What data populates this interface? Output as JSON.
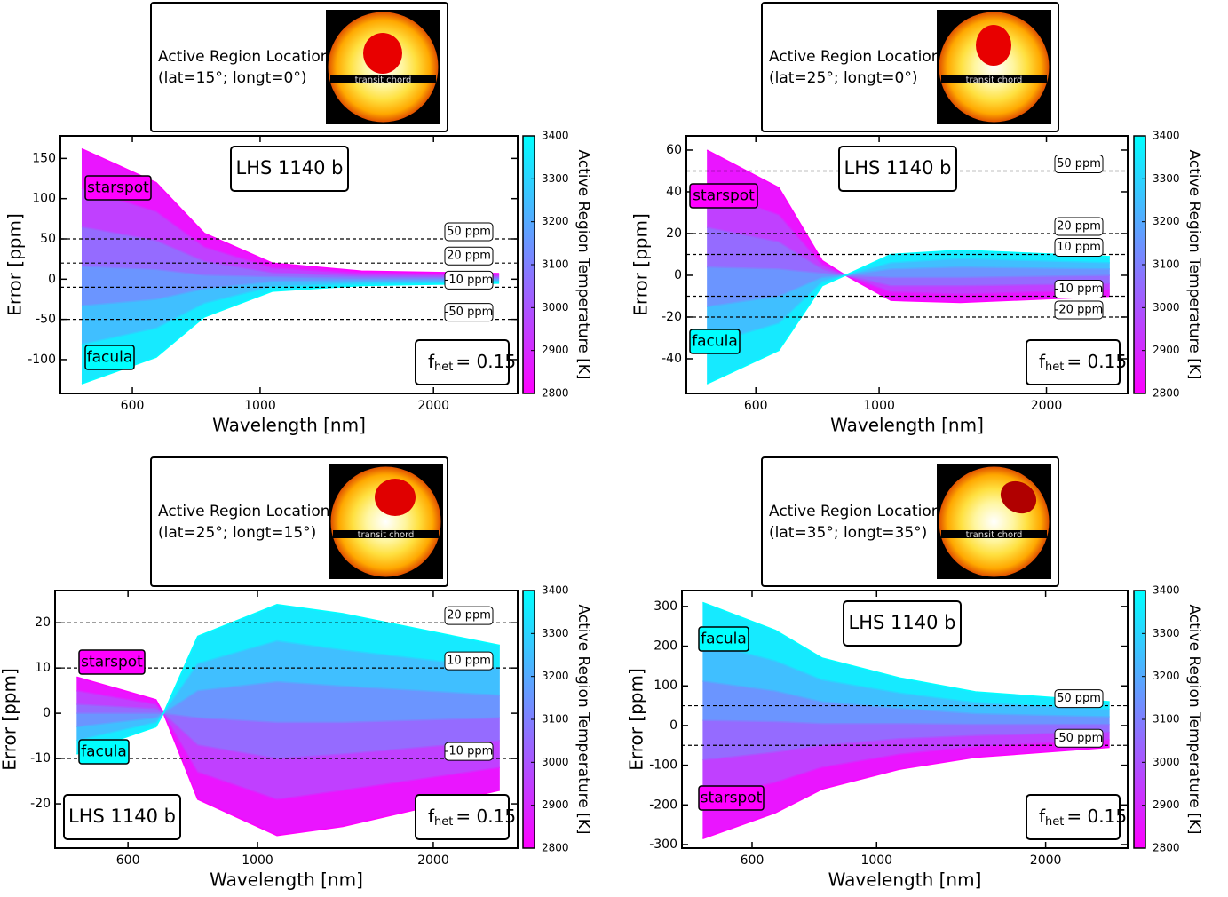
{
  "chart_data": [
    {
      "type": "line",
      "inset": {
        "heading": "Active Region Location:",
        "location": "(lat=15°; longt=0°)",
        "chord_label": "transit chord"
      },
      "title": "LHS 1140 b",
      "annotations": [
        {
          "text": "starspot",
          "color": "#ff00ff"
        },
        {
          "text": "facula",
          "color": "#00ffff"
        }
      ],
      "fhet": {
        "symbol": "f",
        "subscript": "het",
        "text": "= 0.15"
      },
      "xlabel": "Wavelength [nm]",
      "ylabel": "Error [ppm]",
      "xscale": "log",
      "xlim": [
        450,
        2800
      ],
      "xticks": [
        600,
        1000,
        2000
      ],
      "ylim": [
        -142,
        178
      ],
      "yticks": [
        -100,
        -50,
        0,
        50,
        100,
        150
      ],
      "hlines": [
        {
          "value": 50,
          "label": "50 ppm"
        },
        {
          "value": 20,
          "label": "20 ppm"
        },
        {
          "value": -10,
          "label": "-10 ppm"
        },
        {
          "value": -50,
          "label": "-50 ppm"
        }
      ],
      "x": [
        490,
        660,
        800,
        1050,
        1500,
        2600
      ],
      "series": [
        {
          "color": "#ff00ff",
          "values": [
            162,
            120,
            57,
            20,
            10,
            7
          ]
        },
        {
          "color": "#d52aff",
          "values": [
            113,
            84,
            40,
            14,
            7,
            5
          ]
        },
        {
          "color": "#aa55ff",
          "values": [
            65,
            48,
            22,
            8,
            4,
            3
          ]
        },
        {
          "color": "#8080ff",
          "values": [
            16,
            12,
            5,
            3,
            1,
            1
          ]
        },
        {
          "color": "#55aaff",
          "values": [
            -33,
            -25,
            -12,
            -3,
            -2,
            -1
          ]
        },
        {
          "color": "#2bd4ff",
          "values": [
            -81,
            -61,
            -30,
            -9,
            -5,
            -3
          ]
        },
        {
          "color": "#00ffff",
          "values": [
            -130,
            -97,
            -47,
            -15,
            -8,
            -5
          ]
        }
      ],
      "colorbar": {
        "label": "Active Region Temperature [K]",
        "lim": [
          2800,
          3400
        ],
        "ticks": [
          2800,
          2900,
          3000,
          3100,
          3200,
          3300,
          3400
        ],
        "colors": [
          "#ff00ff",
          "#00ffff"
        ]
      }
    },
    {
      "type": "line",
      "inset": {
        "heading": "Active Region Location:",
        "location": "(lat=25°; longt=0°)",
        "chord_label": "transit chord"
      },
      "title": "LHS 1140 b",
      "annotations": [
        {
          "text": "starspot",
          "color": "#ff00ff"
        },
        {
          "text": "facula",
          "color": "#00ffff"
        }
      ],
      "fhet": {
        "symbol": "f",
        "subscript": "het",
        "text": "= 0.15"
      },
      "xlabel": "Wavelength [nm]",
      "ylabel": "Error [ppm]",
      "xscale": "log",
      "xlim": [
        450,
        2800
      ],
      "xticks": [
        600,
        1000,
        2000
      ],
      "ylim": [
        -56.6,
        66.8
      ],
      "yticks": [
        -40,
        -20,
        0,
        20,
        40,
        60
      ],
      "hlines": [
        {
          "value": 50,
          "label": "50 ppm"
        },
        {
          "value": 20,
          "label": "20 ppm"
        },
        {
          "value": 10,
          "label": "10 ppm"
        },
        {
          "value": -10,
          "label": "-10 ppm"
        },
        {
          "value": -20,
          "label": "-20 ppm"
        }
      ],
      "x": [
        490,
        660,
        790,
        870,
        1050,
        1400,
        2600
      ],
      "series": [
        {
          "color": "#ff00ff",
          "values": [
            60,
            42,
            7,
            0,
            -12,
            -13,
            -10
          ]
        },
        {
          "color": "#d52aff",
          "values": [
            41,
            29,
            5,
            0,
            -8,
            -9,
            -7
          ]
        },
        {
          "color": "#aa55ff",
          "values": [
            23,
            16,
            3,
            0,
            -5,
            -5,
            -4
          ]
        },
        {
          "color": "#8080ff",
          "values": [
            4,
            3,
            1,
            0,
            -1,
            -1,
            0
          ]
        },
        {
          "color": "#55aaff",
          "values": [
            -15,
            -10,
            -1,
            0,
            3,
            4,
            3
          ]
        },
        {
          "color": "#2bd4ff",
          "values": [
            -33,
            -23,
            -3,
            0,
            6,
            8,
            6
          ]
        },
        {
          "color": "#00ffff",
          "values": [
            -52,
            -36,
            -5,
            0,
            10,
            12,
            9
          ]
        }
      ],
      "colorbar": {
        "label": "Active Region Temperature [K]",
        "lim": [
          2800,
          3400
        ],
        "ticks": [
          2800,
          2900,
          3000,
          3100,
          3200,
          3300,
          3400
        ],
        "colors": [
          "#ff00ff",
          "#00ffff"
        ]
      }
    },
    {
      "type": "line",
      "inset": {
        "heading": "Active Region Location:",
        "location": "(lat=25°; longt=15°)",
        "chord_label": "transit chord"
      },
      "title": "LHS 1140 b",
      "annotations": [
        {
          "text": "starspot",
          "color": "#ff00ff"
        },
        {
          "text": "facula",
          "color": "#00ffff"
        }
      ],
      "fhet": {
        "symbol": "f",
        "subscript": "het",
        "text": "= 0.15"
      },
      "xlabel": "Wavelength [nm]",
      "ylabel": "Error [ppm]",
      "xscale": "log",
      "xlim": [
        450,
        2790
      ],
      "xticks": [
        600,
        1000,
        2000
      ],
      "ylim": [
        -29.8,
        27.1
      ],
      "yticks": [
        -20,
        -10,
        0,
        10,
        20
      ],
      "hlines": [
        {
          "value": 20,
          "label": "20 ppm"
        },
        {
          "value": 10,
          "label": "10 ppm"
        },
        {
          "value": -10,
          "label": "-10 ppm"
        }
      ],
      "x": [
        490,
        670,
        690,
        790,
        1080,
        1400,
        2600
      ],
      "series": [
        {
          "color": "#ff00ff",
          "values": [
            8,
            3,
            0,
            -19,
            -27,
            -25,
            -17
          ]
        },
        {
          "color": "#d52aff",
          "values": [
            5,
            2,
            0,
            -13,
            -19,
            -17,
            -12
          ]
        },
        {
          "color": "#aa55ff",
          "values": [
            2,
            1,
            0,
            -7,
            -10,
            -9,
            -6
          ]
        },
        {
          "color": "#8080ff",
          "values": [
            0,
            0,
            0,
            -1,
            -2,
            -2,
            -1
          ]
        },
        {
          "color": "#55aaff",
          "values": [
            -3,
            -1,
            0,
            5,
            7,
            6,
            4
          ]
        },
        {
          "color": "#2bd4ff",
          "values": [
            -6,
            -2,
            0,
            11,
            16,
            14,
            10
          ]
        },
        {
          "color": "#00ffff",
          "values": [
            -9,
            -3,
            0,
            17,
            24,
            22,
            15
          ]
        }
      ],
      "colorbar": {
        "label": "Active Region Temperature [K]",
        "lim": [
          2800,
          3400
        ],
        "ticks": [
          2800,
          2900,
          3000,
          3100,
          3200,
          3300,
          3400
        ],
        "colors": [
          "#ff00ff",
          "#00ffff"
        ]
      }
    },
    {
      "type": "line",
      "inset": {
        "heading": "Active Region Location:",
        "location": "(lat=35°; longt=35°)",
        "chord_label": "transit chord"
      },
      "title": "LHS 1140 b",
      "annotations": [
        {
          "text": "starspot",
          "color": "#ff00ff"
        },
        {
          "text": "facula",
          "color": "#00ffff"
        }
      ],
      "fhet": {
        "symbol": "f",
        "subscript": "het",
        "text": "= 0.15"
      },
      "xlabel": "Wavelength [nm]",
      "ylabel": "Error [ppm]",
      "xscale": "log",
      "xlim": [
        450,
        2800
      ],
      "xticks": [
        600,
        1000,
        2000
      ],
      "ylim": [
        -309,
        340
      ],
      "yticks": [
        -300,
        -200,
        -100,
        0,
        100,
        200,
        300
      ],
      "hlines": [
        {
          "value": 50,
          "label": "50 ppm"
        },
        {
          "value": -50,
          "label": "-50 ppm"
        }
      ],
      "x": [
        490,
        660,
        800,
        1100,
        1500,
        2600
      ],
      "series": [
        {
          "color": "#ff00ff",
          "values": [
            -285,
            -220,
            -160,
            -110,
            -80,
            -55
          ]
        },
        {
          "color": "#d52aff",
          "values": [
            -186,
            -143,
            -105,
            -72,
            -53,
            -36
          ]
        },
        {
          "color": "#aa55ff",
          "values": [
            -87,
            -67,
            -50,
            -33,
            -25,
            -17
          ]
        },
        {
          "color": "#8080ff",
          "values": [
            13,
            10,
            5,
            5,
            3,
            3
          ]
        },
        {
          "color": "#55aaff",
          "values": [
            112,
            87,
            60,
            43,
            30,
            22
          ]
        },
        {
          "color": "#2bd4ff",
          "values": [
            211,
            163,
            115,
            82,
            58,
            41
          ]
        },
        {
          "color": "#00ffff",
          "values": [
            310,
            240,
            170,
            120,
            85,
            60
          ]
        }
      ],
      "colorbar": {
        "label": "Active Region Temperature [K]",
        "lim": [
          2800,
          3400
        ],
        "ticks": [
          2800,
          2900,
          3000,
          3100,
          3200,
          3300,
          3400
        ],
        "colors": [
          "#ff00ff",
          "#00ffff"
        ]
      }
    }
  ]
}
